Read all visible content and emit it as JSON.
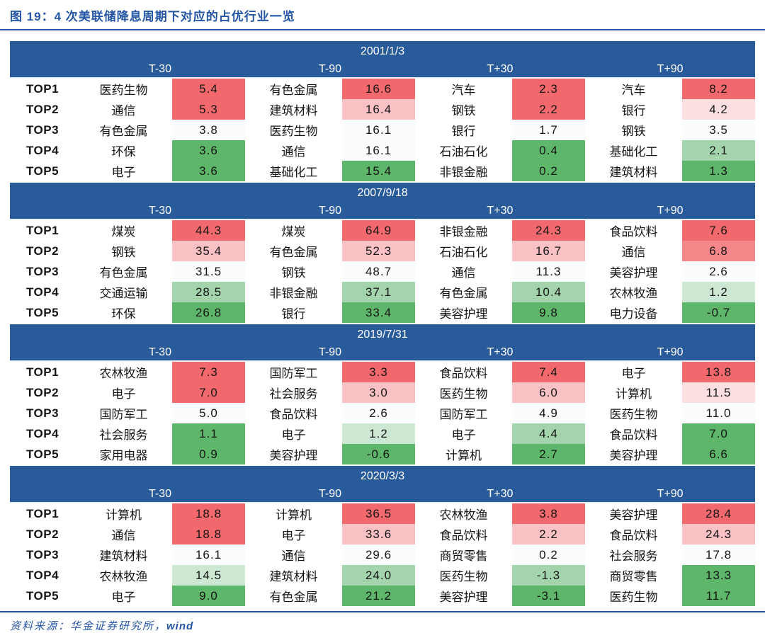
{
  "title": "图 19：4 次美联储降息周期下对应的占优行业一览",
  "source_prefix": "资料来源：华金证券研究所，",
  "source_brand": "wind",
  "row_labels": [
    "TOP1",
    "TOP2",
    "TOP3",
    "TOP4",
    "TOP5"
  ],
  "columns": [
    "T-30",
    "T-90",
    "T+30",
    "T+90"
  ],
  "colors": {
    "header_bg": "#295B9B",
    "accent_blue": "#2456A5",
    "label_red": "#F40B0B",
    "tones": {
      "r1": "#F1696C",
      "r2": "#F5868A",
      "r3": "#F9C1C4",
      "r4": "#FBDFE1",
      "w": "#FAFCFE",
      "g3": "#CDE8D2",
      "g2": "#A3D4AB",
      "g1": "#5DB669"
    }
  },
  "chart_data": {
    "type": "table",
    "title": "4次美联储降息周期下对应的占优行业一览",
    "row_labels": [
      "TOP1",
      "TOP2",
      "TOP3",
      "TOP4",
      "TOP5"
    ],
    "sections": [
      {
        "date": "2001/1/3",
        "groups": [
          {
            "label": "T-30",
            "rows": [
              {
                "name": "医药生物",
                "value": "5.4",
                "tone": "r1"
              },
              {
                "name": "通信",
                "value": "5.3",
                "tone": "r1"
              },
              {
                "name": "有色金属",
                "value": "3.8",
                "tone": "w"
              },
              {
                "name": "环保",
                "value": "3.6",
                "tone": "g1"
              },
              {
                "name": "电子",
                "value": "3.6",
                "tone": "g1"
              }
            ]
          },
          {
            "label": "T-90",
            "rows": [
              {
                "name": "有色金属",
                "value": "16.6",
                "tone": "r1"
              },
              {
                "name": "建筑材料",
                "value": "16.4",
                "tone": "r3"
              },
              {
                "name": "医药生物",
                "value": "16.1",
                "tone": "w"
              },
              {
                "name": "通信",
                "value": "16.1",
                "tone": "w"
              },
              {
                "name": "基础化工",
                "value": "15.4",
                "tone": "g1"
              }
            ]
          },
          {
            "label": "T+30",
            "rows": [
              {
                "name": "汽车",
                "value": "2.3",
                "tone": "r1"
              },
              {
                "name": "钢铁",
                "value": "2.2",
                "tone": "r1"
              },
              {
                "name": "银行",
                "value": "1.7",
                "tone": "w"
              },
              {
                "name": "石油石化",
                "value": "0.4",
                "tone": "g1"
              },
              {
                "name": "非银金融",
                "value": "0.2",
                "tone": "g1"
              }
            ]
          },
          {
            "label": "T+90",
            "rows": [
              {
                "name": "汽车",
                "value": "8.2",
                "tone": "r1"
              },
              {
                "name": "银行",
                "value": "4.2",
                "tone": "r4"
              },
              {
                "name": "钢铁",
                "value": "3.5",
                "tone": "w"
              },
              {
                "name": "基础化工",
                "value": "2.1",
                "tone": "g2"
              },
              {
                "name": "建筑材料",
                "value": "1.3",
                "tone": "g1"
              }
            ]
          }
        ]
      },
      {
        "date": "2007/9/18",
        "groups": [
          {
            "label": "T-30",
            "rows": [
              {
                "name": "煤炭",
                "value": "44.3",
                "tone": "r1"
              },
              {
                "name": "钢铁",
                "value": "35.4",
                "tone": "r3"
              },
              {
                "name": "有色金属",
                "value": "31.5",
                "tone": "w"
              },
              {
                "name": "交通运输",
                "value": "28.5",
                "tone": "g2"
              },
              {
                "name": "环保",
                "value": "26.8",
                "tone": "g1"
              }
            ]
          },
          {
            "label": "T-90",
            "rows": [
              {
                "name": "煤炭",
                "value": "64.9",
                "tone": "r1"
              },
              {
                "name": "有色金属",
                "value": "52.3",
                "tone": "r3"
              },
              {
                "name": "钢铁",
                "value": "48.7",
                "tone": "w"
              },
              {
                "name": "非银金融",
                "value": "37.1",
                "tone": "g2"
              },
              {
                "name": "银行",
                "value": "33.4",
                "tone": "g1"
              }
            ]
          },
          {
            "label": "T+30",
            "rows": [
              {
                "name": "非银金融",
                "value": "24.3",
                "tone": "r1"
              },
              {
                "name": "石油石化",
                "value": "16.7",
                "tone": "r3"
              },
              {
                "name": "通信",
                "value": "11.3",
                "tone": "w"
              },
              {
                "name": "有色金属",
                "value": "10.4",
                "tone": "g2"
              },
              {
                "name": "美容护理",
                "value": "9.8",
                "tone": "g1"
              }
            ]
          },
          {
            "label": "T+90",
            "rows": [
              {
                "name": "食品饮料",
                "value": "7.6",
                "tone": "r1"
              },
              {
                "name": "通信",
                "value": "6.8",
                "tone": "r2"
              },
              {
                "name": "美容护理",
                "value": "2.6",
                "tone": "w"
              },
              {
                "name": "农林牧渔",
                "value": "1.2",
                "tone": "g3"
              },
              {
                "name": "电力设备",
                "value": "-0.7",
                "tone": "g1"
              }
            ]
          }
        ]
      },
      {
        "date": "2019/7/31",
        "groups": [
          {
            "label": "T-30",
            "rows": [
              {
                "name": "农林牧渔",
                "value": "7.3",
                "tone": "r1"
              },
              {
                "name": "电子",
                "value": "7.0",
                "tone": "r1"
              },
              {
                "name": "国防军工",
                "value": "5.0",
                "tone": "w"
              },
              {
                "name": "社会服务",
                "value": "1.1",
                "tone": "g1"
              },
              {
                "name": "家用电器",
                "value": "0.9",
                "tone": "g1"
              }
            ]
          },
          {
            "label": "T-90",
            "rows": [
              {
                "name": "国防军工",
                "value": "3.3",
                "tone": "r1"
              },
              {
                "name": "社会服务",
                "value": "3.0",
                "tone": "r3"
              },
              {
                "name": "食品饮料",
                "value": "2.6",
                "tone": "w"
              },
              {
                "name": "电子",
                "value": "1.2",
                "tone": "g3"
              },
              {
                "name": "美容护理",
                "value": "-0.6",
                "tone": "g1"
              }
            ]
          },
          {
            "label": "T+30",
            "rows": [
              {
                "name": "食品饮料",
                "value": "7.4",
                "tone": "r1"
              },
              {
                "name": "医药生物",
                "value": "6.0",
                "tone": "r3"
              },
              {
                "name": "国防军工",
                "value": "4.9",
                "tone": "w"
              },
              {
                "name": "电子",
                "value": "4.4",
                "tone": "g2"
              },
              {
                "name": "计算机",
                "value": "2.7",
                "tone": "g1"
              }
            ]
          },
          {
            "label": "T+90",
            "rows": [
              {
                "name": "电子",
                "value": "13.8",
                "tone": "r1"
              },
              {
                "name": "计算机",
                "value": "11.5",
                "tone": "r4"
              },
              {
                "name": "医药生物",
                "value": "11.0",
                "tone": "w"
              },
              {
                "name": "食品饮料",
                "value": "7.0",
                "tone": "g1"
              },
              {
                "name": "美容护理",
                "value": "6.6",
                "tone": "g1"
              }
            ]
          }
        ]
      },
      {
        "date": "2020/3/3",
        "groups": [
          {
            "label": "T-30",
            "rows": [
              {
                "name": "计算机",
                "value": "18.8",
                "tone": "r1"
              },
              {
                "name": "通信",
                "value": "18.8",
                "tone": "r1"
              },
              {
                "name": "建筑材料",
                "value": "16.1",
                "tone": "w"
              },
              {
                "name": "农林牧渔",
                "value": "14.5",
                "tone": "g3"
              },
              {
                "name": "电子",
                "value": "9.0",
                "tone": "g1"
              }
            ]
          },
          {
            "label": "T-90",
            "rows": [
              {
                "name": "计算机",
                "value": "36.5",
                "tone": "r1"
              },
              {
                "name": "电子",
                "value": "33.6",
                "tone": "r3"
              },
              {
                "name": "通信",
                "value": "29.6",
                "tone": "w"
              },
              {
                "name": "建筑材料",
                "value": "24.0",
                "tone": "g2"
              },
              {
                "name": "有色金属",
                "value": "21.2",
                "tone": "g1"
              }
            ]
          },
          {
            "label": "T+30",
            "rows": [
              {
                "name": "农林牧渔",
                "value": "3.8",
                "tone": "r1"
              },
              {
                "name": "食品饮料",
                "value": "2.2",
                "tone": "r3"
              },
              {
                "name": "商贸零售",
                "value": "0.2",
                "tone": "w"
              },
              {
                "name": "医药生物",
                "value": "-1.3",
                "tone": "g2"
              },
              {
                "name": "美容护理",
                "value": "-3.1",
                "tone": "g1"
              }
            ]
          },
          {
            "label": "T+90",
            "rows": [
              {
                "name": "美容护理",
                "value": "28.4",
                "tone": "r1"
              },
              {
                "name": "食品饮料",
                "value": "24.3",
                "tone": "r3"
              },
              {
                "name": "社会服务",
                "value": "17.8",
                "tone": "w"
              },
              {
                "name": "商贸零售",
                "value": "13.3",
                "tone": "g1"
              },
              {
                "name": "医药生物",
                "value": "11.7",
                "tone": "g1"
              }
            ]
          }
        ]
      }
    ]
  }
}
